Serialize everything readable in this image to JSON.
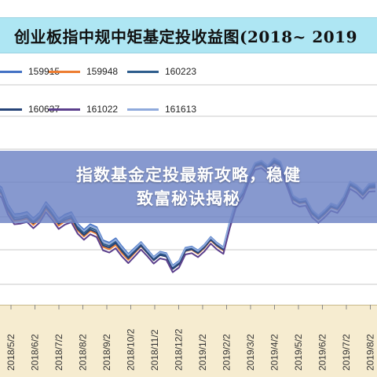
{
  "banner": {
    "line1": "指数基金定投最新攻略，稳健",
    "line2": "致富秘诀揭秘"
  },
  "chart_data": {
    "type": "line",
    "title": "创业板指中规中矩基定投收益图(2018~ 2019",
    "x": [
      "2018/5/2",
      "2018/6/2",
      "2018/7/2",
      "2018/8/2",
      "2018/9/2",
      "2018/10/2",
      "2018/11/2",
      "2018/12/2",
      "2019/1/2",
      "2019/2/2",
      "2019/3/2",
      "2019/4/2",
      "2019/5/2",
      "2019/6/2",
      "2019/7/2",
      "2019/8/2"
    ],
    "grid": true,
    "legend_position": "top",
    "series": [
      {
        "name": "159915",
        "color": "#4472c4",
        "values": [
          1.8,
          1.3,
          1.45,
          1.3,
          1.1,
          0.85,
          0.85,
          0.65,
          0.9,
          0.95,
          2.0,
          2.2,
          1.55,
          1.35,
          1.75,
          1.8
        ]
      },
      {
        "name": "159948",
        "color": "#ed7d31",
        "values": [
          1.7,
          1.2,
          1.35,
          1.2,
          1.0,
          0.75,
          0.8,
          0.6,
          0.85,
          0.9,
          1.95,
          2.15,
          1.5,
          1.3,
          1.7,
          1.75
        ]
      },
      {
        "name": "160223",
        "color": "#2e5d8c",
        "values": [
          1.75,
          1.25,
          1.4,
          1.25,
          1.05,
          0.8,
          0.82,
          0.62,
          0.87,
          0.92,
          1.98,
          2.18,
          1.52,
          1.32,
          1.72,
          1.78
        ]
      },
      {
        "name": "160637",
        "color": "#264478",
        "values": [
          1.72,
          1.22,
          1.38,
          1.22,
          1.02,
          0.78,
          0.8,
          0.6,
          0.86,
          0.91,
          1.96,
          2.16,
          1.51,
          1.31,
          1.71,
          1.76
        ]
      },
      {
        "name": "161022",
        "color": "#5b3f8c",
        "values": [
          1.65,
          1.15,
          1.3,
          1.15,
          0.95,
          0.7,
          0.75,
          0.55,
          0.8,
          0.85,
          1.9,
          2.1,
          1.45,
          1.25,
          1.65,
          1.7
        ]
      },
      {
        "name": "161613",
        "color": "#8faadc",
        "values": [
          1.78,
          1.28,
          1.43,
          1.28,
          1.08,
          0.83,
          0.84,
          0.64,
          0.89,
          0.94,
          2.0,
          2.22,
          1.56,
          1.36,
          1.76,
          1.82
        ]
      }
    ],
    "legend": [
      {
        "label": "159915",
        "color": "#4472c4"
      },
      {
        "label": "159948",
        "color": "#ed7d31"
      },
      {
        "label": "160223",
        "color": "#2e5d8c"
      },
      {
        "label": "160637",
        "color": "#264478"
      },
      {
        "label": "161022",
        "color": "#5b3f8c"
      },
      {
        "label": "161613",
        "color": "#8faadc"
      }
    ]
  }
}
